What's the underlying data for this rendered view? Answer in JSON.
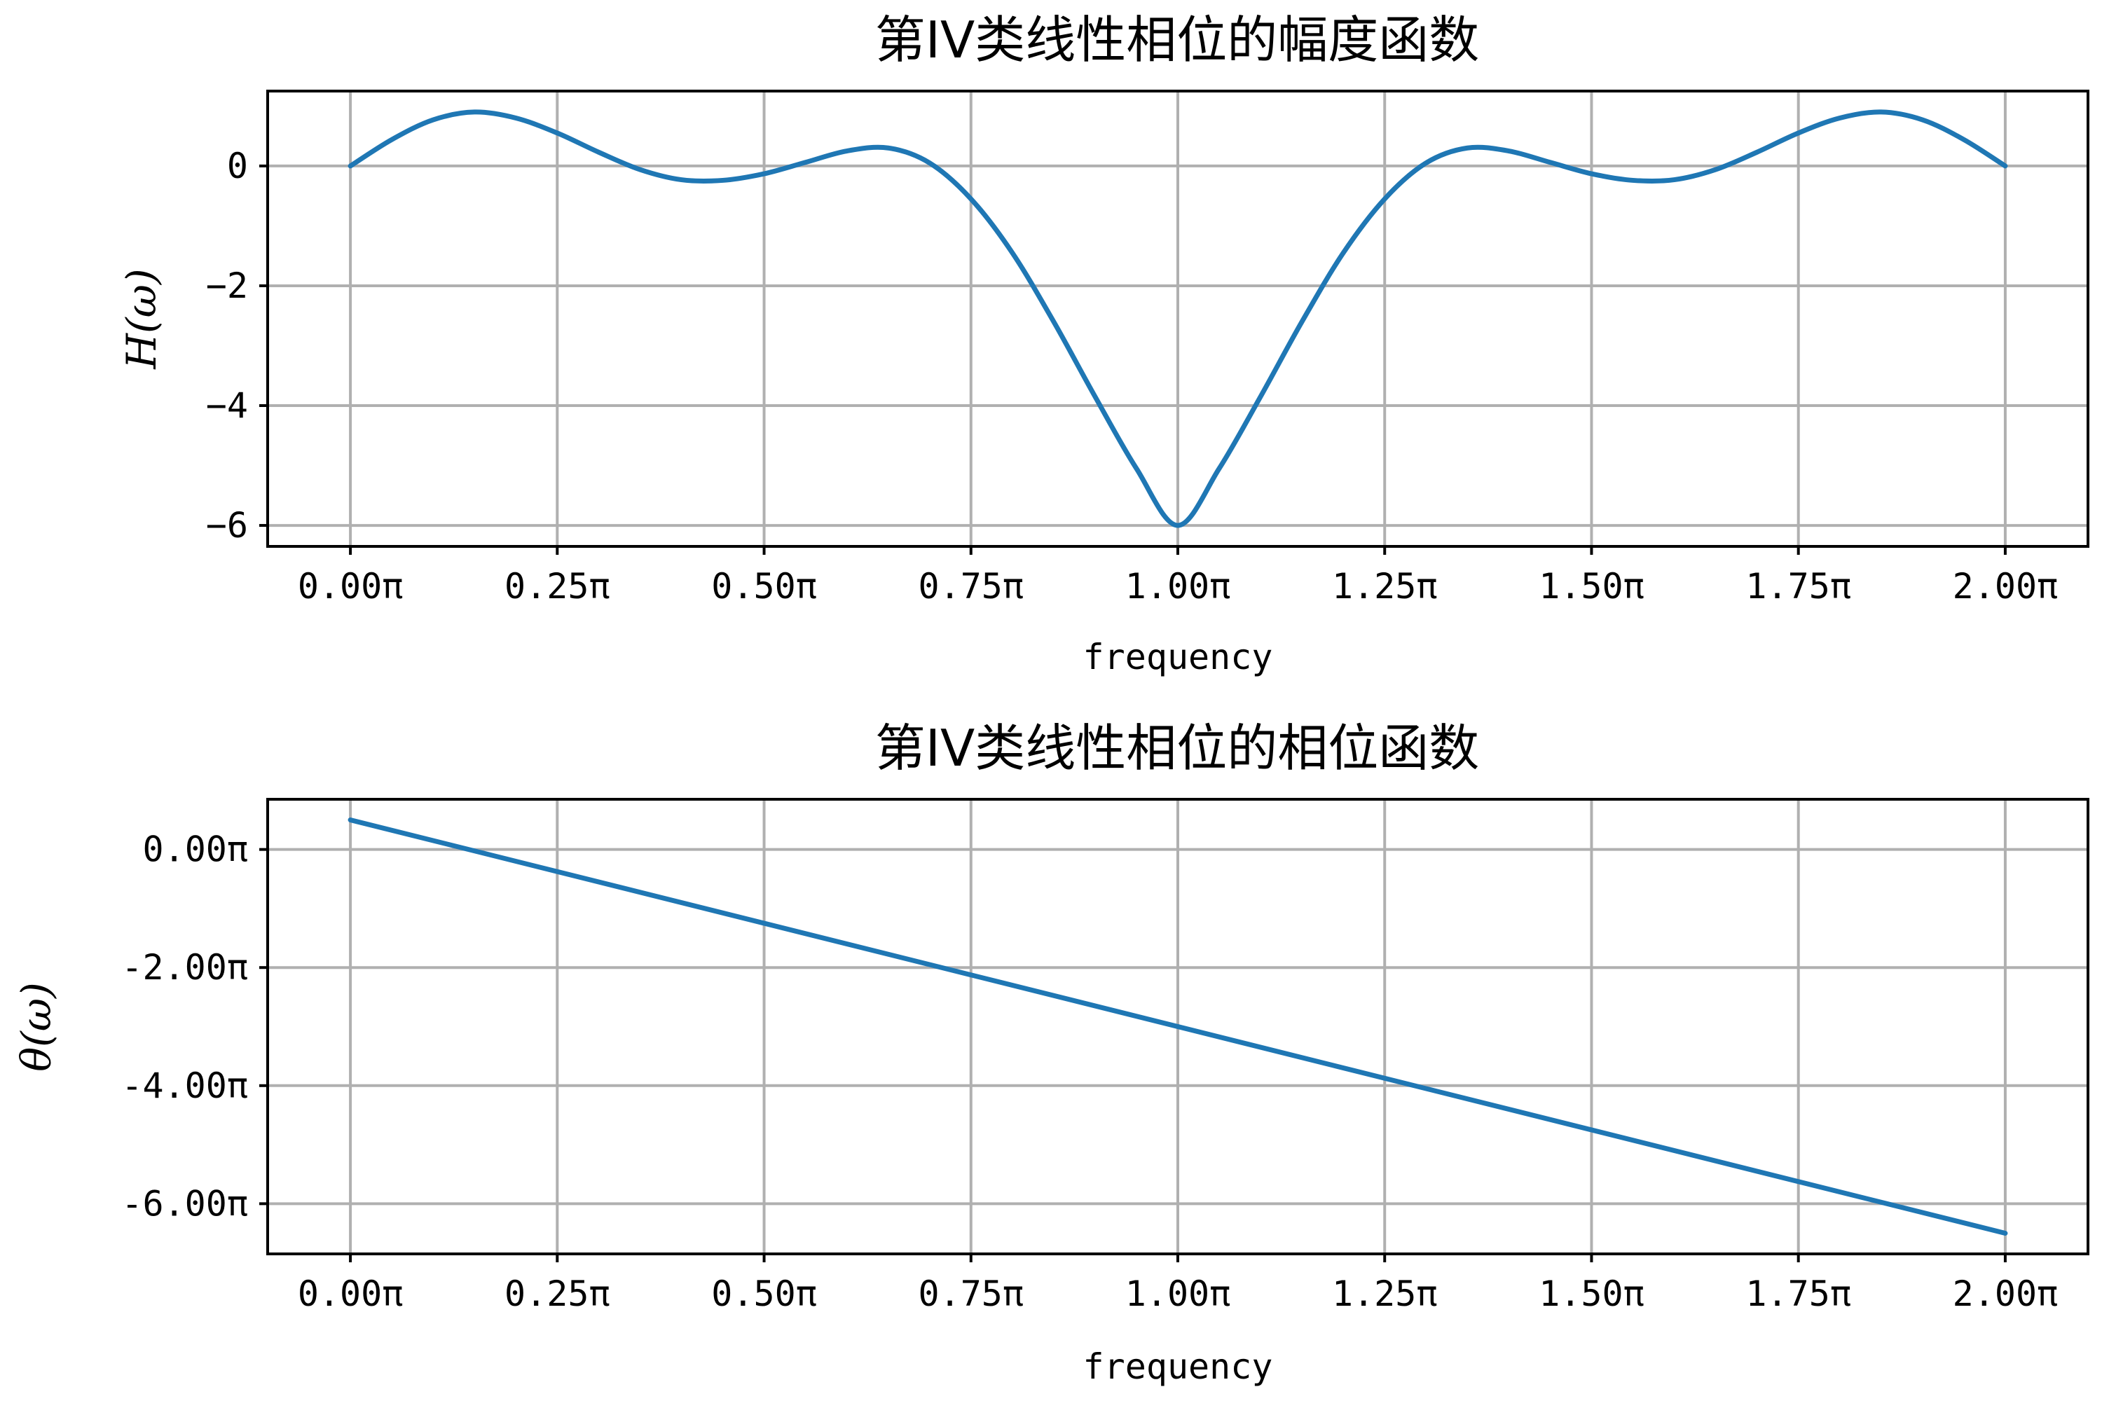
{
  "chart_data": [
    {
      "type": "line",
      "title": "第IV类线性相位的幅度函数",
      "xlabel": "frequency",
      "ylabel": "H(ω)",
      "xlim": [
        -0.2,
        4.2
      ],
      "ylim": [
        -6.35,
        1.25
      ],
      "grid": true,
      "line_color": "#1f77b4",
      "x_ticks": [
        0,
        0.5,
        1.0,
        1.5,
        2.0,
        2.5,
        3.0,
        3.5,
        4.0
      ],
      "x_tick_labels": [
        "0.00π",
        "0.25π",
        "0.50π",
        "0.75π",
        "1.00π",
        "1.25π",
        "1.50π",
        "1.75π",
        "2.00π"
      ],
      "y_ticks": [
        0,
        -2,
        -4,
        -6
      ],
      "y_tick_labels": [
        "0",
        "−2",
        "−4",
        "−6"
      ],
      "series": [
        {
          "x": [
            0,
            0.1,
            0.2,
            0.3,
            0.4,
            0.5,
            0.6,
            0.7,
            0.8,
            0.9,
            1.0,
            1.1,
            1.2,
            1.3,
            1.4,
            1.5,
            1.6,
            1.7,
            1.8,
            1.9,
            2.0,
            2.1,
            2.2,
            2.3,
            2.4,
            2.5,
            2.6,
            2.7,
            2.8,
            2.9,
            3.0,
            3.1,
            3.2,
            3.3,
            3.4,
            3.5,
            3.6,
            3.7,
            3.8,
            3.9,
            4.0
          ],
          "y": [
            0.0,
            0.44,
            0.77,
            0.9,
            0.8,
            0.55,
            0.23,
            -0.06,
            -0.23,
            -0.24,
            -0.13,
            0.06,
            0.25,
            0.3,
            0.05,
            -0.55,
            -1.45,
            -2.6,
            -3.85,
            -5.05,
            -6.0,
            -5.05,
            -3.85,
            -2.6,
            -1.45,
            -0.55,
            0.05,
            0.3,
            0.25,
            0.06,
            -0.13,
            -0.24,
            -0.23,
            -0.06,
            0.23,
            0.55,
            0.8,
            0.9,
            0.77,
            0.44,
            0.0
          ]
        }
      ]
    },
    {
      "type": "line",
      "title": "第IV类线性相位的相位函数",
      "xlabel": "frequency",
      "ylabel": "θ(ω)",
      "xlim": [
        -0.2,
        4.2
      ],
      "ylim": [
        -6.85,
        0.85
      ],
      "grid": true,
      "line_color": "#1f77b4",
      "x_ticks": [
        0,
        0.5,
        1.0,
        1.5,
        2.0,
        2.5,
        3.0,
        3.5,
        4.0
      ],
      "x_tick_labels": [
        "0.00π",
        "0.25π",
        "0.50π",
        "0.75π",
        "1.00π",
        "1.25π",
        "1.50π",
        "1.75π",
        "2.00π"
      ],
      "y_ticks": [
        0,
        -2,
        -4,
        -6
      ],
      "y_tick_labels": [
        "0.00π",
        "-2.00π",
        "-4.00π",
        "-6.00π"
      ],
      "series": [
        {
          "x": [
            0,
            4.0
          ],
          "y": [
            0.5,
            -6.5
          ]
        }
      ]
    }
  ]
}
